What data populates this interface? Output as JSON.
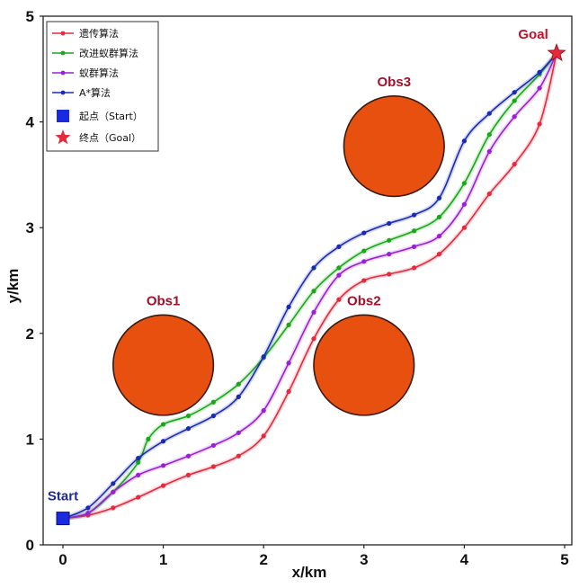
{
  "chart_data": {
    "type": "line",
    "xlabel": "x/km",
    "ylabel": "y/km",
    "xlim": [
      0,
      5
    ],
    "ylim": [
      0,
      5
    ],
    "xticks": [
      "0",
      "1",
      "2",
      "3",
      "4",
      "5"
    ],
    "yticks": [
      "0",
      "1",
      "2",
      "3",
      "4",
      "5"
    ],
    "grid": false,
    "legend_position": "top-left",
    "series": [
      {
        "name": "遗传算法",
        "color": "#e8283c",
        "x": [
          0,
          0.25,
          0.5,
          0.75,
          1.0,
          1.25,
          1.5,
          1.75,
          2.0,
          2.25,
          2.5,
          2.75,
          3.0,
          3.25,
          3.5,
          3.75,
          4.0,
          4.25,
          4.5,
          4.75,
          4.92
        ],
        "y": [
          0.25,
          0.28,
          0.35,
          0.45,
          0.56,
          0.66,
          0.74,
          0.84,
          1.03,
          1.45,
          1.95,
          2.32,
          2.5,
          2.56,
          2.62,
          2.75,
          3.0,
          3.32,
          3.6,
          3.98,
          4.65
        ]
      },
      {
        "name": "改进蚁群算法",
        "color": "#18a818",
        "x": [
          0,
          0.25,
          0.5,
          0.75,
          0.85,
          1.0,
          1.25,
          1.5,
          1.75,
          2.0,
          2.25,
          2.5,
          2.75,
          3.0,
          3.25,
          3.5,
          3.75,
          4.0,
          4.25,
          4.5,
          4.75,
          4.92
        ],
        "y": [
          0.25,
          0.3,
          0.5,
          0.78,
          1.0,
          1.14,
          1.22,
          1.35,
          1.52,
          1.77,
          2.08,
          2.4,
          2.62,
          2.78,
          2.88,
          2.97,
          3.1,
          3.42,
          3.88,
          4.2,
          4.45,
          4.65
        ]
      },
      {
        "name": "蚁群算法",
        "color": "#9b1fd8",
        "x": [
          0,
          0.25,
          0.5,
          0.75,
          1.0,
          1.25,
          1.5,
          1.75,
          2.0,
          2.25,
          2.5,
          2.75,
          3.0,
          3.25,
          3.5,
          3.75,
          4.0,
          4.25,
          4.5,
          4.75,
          4.92
        ],
        "y": [
          0.25,
          0.3,
          0.5,
          0.66,
          0.75,
          0.84,
          0.94,
          1.06,
          1.27,
          1.72,
          2.2,
          2.55,
          2.68,
          2.75,
          2.82,
          2.92,
          3.22,
          3.72,
          4.05,
          4.32,
          4.65
        ]
      },
      {
        "name": "A*算法",
        "color": "#1a2ab8",
        "x": [
          0,
          0.25,
          0.5,
          0.75,
          1.0,
          1.25,
          1.5,
          1.75,
          2.0,
          2.25,
          2.5,
          2.75,
          3.0,
          3.25,
          3.5,
          3.75,
          4.0,
          4.25,
          4.5,
          4.75,
          4.92
        ],
        "y": [
          0.25,
          0.35,
          0.58,
          0.82,
          0.98,
          1.1,
          1.22,
          1.4,
          1.78,
          2.25,
          2.62,
          2.82,
          2.95,
          3.04,
          3.12,
          3.28,
          3.82,
          4.08,
          4.28,
          4.47,
          4.65
        ]
      }
    ],
    "obstacles": [
      {
        "label": "Obs1",
        "cx": 1.0,
        "cy": 1.7,
        "r": 0.5
      },
      {
        "label": "Obs2",
        "cx": 3.0,
        "cy": 1.7,
        "r": 0.5
      },
      {
        "label": "Obs3",
        "cx": 3.3,
        "cy": 3.77,
        "r": 0.5
      }
    ],
    "start": {
      "label": "Start",
      "legend": "起点（Start）",
      "x": 0,
      "y": 0.25,
      "color": "#1a2ae0"
    },
    "goal": {
      "label": "Goal",
      "legend": "终点（Goal）",
      "x": 4.92,
      "y": 4.65,
      "color": "#e8283c"
    },
    "obstacle_color": "#e85010"
  }
}
